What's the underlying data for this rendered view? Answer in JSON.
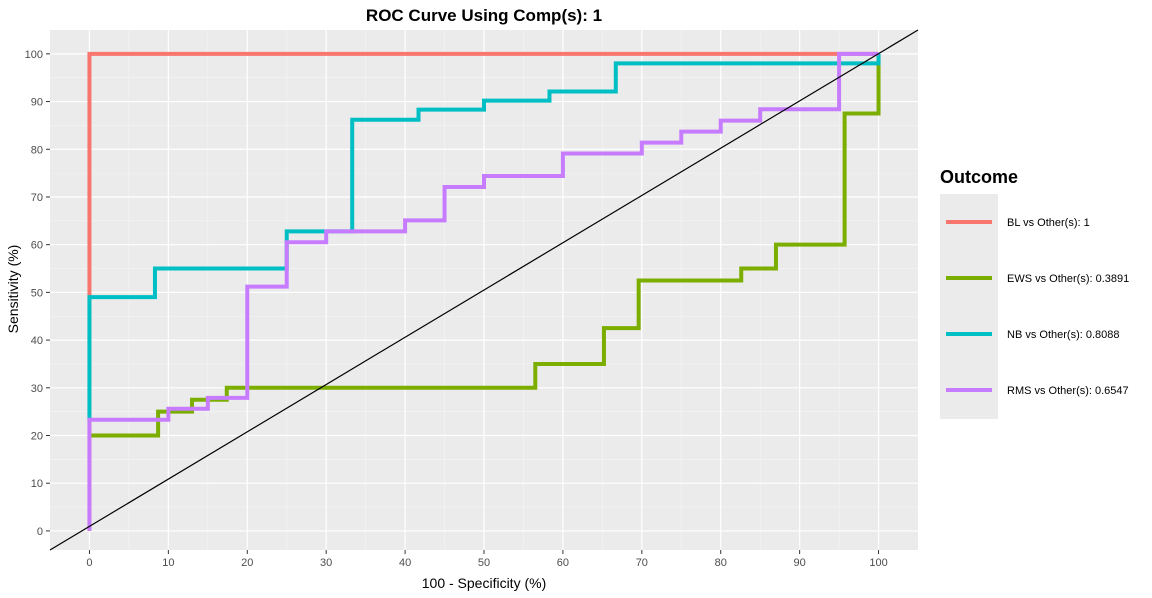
{
  "chart_data": {
    "type": "line",
    "title": "ROC Curve Using Comp(s): 1",
    "xlabel": "100 - Specificity (%)",
    "ylabel": "Sensitivity (%)",
    "xlim": [
      -5,
      105
    ],
    "ylim": [
      -4,
      105
    ],
    "xticks": [
      0,
      10,
      20,
      30,
      40,
      50,
      60,
      70,
      80,
      90,
      100
    ],
    "yticks": [
      0,
      10,
      20,
      30,
      40,
      50,
      60,
      70,
      80,
      90,
      100
    ],
    "grid": true,
    "legend": {
      "title": "Outcome",
      "position": "right"
    },
    "reference_line": {
      "from": [
        -5,
        -4
      ],
      "to": [
        105,
        105
      ]
    },
    "series": [
      {
        "name": "BL vs Other(s): 1",
        "color": "#F8766D",
        "points": [
          [
            0,
            0
          ],
          [
            0,
            100
          ],
          [
            95,
            100
          ],
          [
            100,
            100
          ]
        ]
      },
      {
        "name": "EWS vs Other(s): 0.3891",
        "color": "#7CAE00",
        "points": [
          [
            0,
            20
          ],
          [
            8.7,
            20
          ],
          [
            8.7,
            25
          ],
          [
            13,
            25
          ],
          [
            13,
            27.5
          ],
          [
            17.4,
            27.5
          ],
          [
            17.4,
            30
          ],
          [
            56.5,
            30
          ],
          [
            56.5,
            35
          ],
          [
            65.2,
            35
          ],
          [
            65.2,
            42.5
          ],
          [
            69.6,
            42.5
          ],
          [
            69.6,
            52.5
          ],
          [
            82.6,
            52.5
          ],
          [
            82.6,
            55
          ],
          [
            87,
            55
          ],
          [
            87,
            60
          ],
          [
            95.7,
            60
          ],
          [
            95.7,
            87.5
          ],
          [
            100,
            87.5
          ],
          [
            100,
            100
          ]
        ]
      },
      {
        "name": "NB vs Other(s): 0.8088",
        "color": "#00BFC4",
        "points": [
          [
            0,
            23
          ],
          [
            0,
            49
          ],
          [
            8.3,
            49
          ],
          [
            8.3,
            55
          ],
          [
            25,
            55
          ],
          [
            25,
            62.8
          ],
          [
            33.3,
            62.8
          ],
          [
            33.3,
            86.2
          ],
          [
            41.7,
            86.2
          ],
          [
            41.7,
            88.3
          ],
          [
            50,
            88.3
          ],
          [
            50,
            90.2
          ],
          [
            58.3,
            90.2
          ],
          [
            58.3,
            92.1
          ],
          [
            66.7,
            92.1
          ],
          [
            66.7,
            98
          ],
          [
            100,
            98
          ],
          [
            100,
            100
          ]
        ]
      },
      {
        "name": "RMS vs Other(s): 0.6547",
        "color": "#C77CFF",
        "points": [
          [
            0,
            0
          ],
          [
            0,
            23.3
          ],
          [
            10,
            23.3
          ],
          [
            10,
            25.6
          ],
          [
            15,
            25.6
          ],
          [
            15,
            27.9
          ],
          [
            20,
            27.9
          ],
          [
            20,
            51.2
          ],
          [
            25,
            51.2
          ],
          [
            25,
            60.5
          ],
          [
            30,
            60.5
          ],
          [
            30,
            62.8
          ],
          [
            40,
            62.8
          ],
          [
            40,
            65.1
          ],
          [
            45,
            65.1
          ],
          [
            45,
            72.1
          ],
          [
            50,
            72.1
          ],
          [
            50,
            74.4
          ],
          [
            60,
            74.4
          ],
          [
            60,
            79.1
          ],
          [
            70,
            79.1
          ],
          [
            70,
            81.4
          ],
          [
            75,
            81.4
          ],
          [
            75,
            83.7
          ],
          [
            80,
            83.7
          ],
          [
            80,
            86
          ],
          [
            85,
            86
          ],
          [
            85,
            88.4
          ],
          [
            95,
            88.4
          ],
          [
            95,
            100
          ],
          [
            100,
            100
          ]
        ]
      }
    ]
  }
}
